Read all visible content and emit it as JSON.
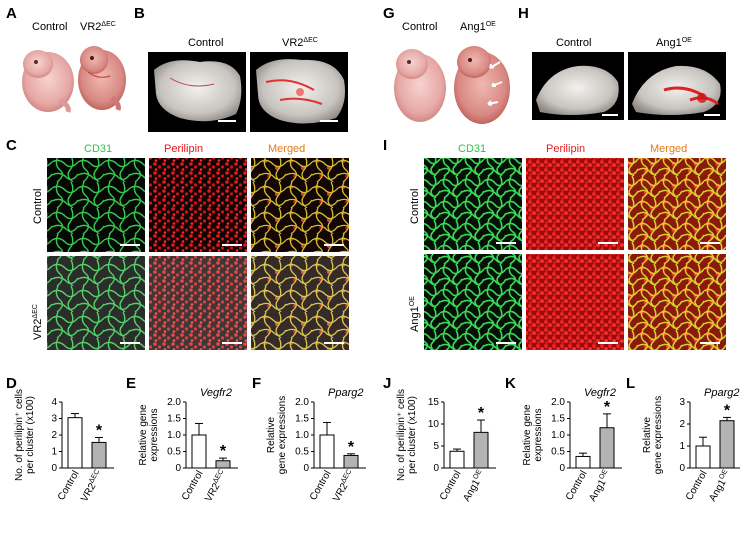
{
  "panel_letters": [
    "A",
    "B",
    "C",
    "D",
    "E",
    "F",
    "G",
    "H",
    "I",
    "J",
    "K",
    "L"
  ],
  "A": {
    "labels": [
      "Control",
      "VR2"
    ],
    "sup": [
      "",
      "ΔEC"
    ]
  },
  "B": {
    "labels": [
      "Control",
      "VR2"
    ],
    "sup": [
      "",
      "ΔEC"
    ]
  },
  "G": {
    "labels": [
      "Control",
      "Ang1"
    ],
    "sup": [
      "",
      "OE"
    ]
  },
  "H": {
    "labels": [
      "Control",
      "Ang1"
    ],
    "sup": [
      "",
      "OE"
    ]
  },
  "C": {
    "columns": [
      "CD31",
      "Perilipin",
      "Merged"
    ],
    "rows": [
      "Control",
      "VR2"
    ],
    "row_sup": [
      "",
      "ΔEC"
    ]
  },
  "I": {
    "columns": [
      "CD31",
      "Perilipin",
      "Merged"
    ],
    "rows": [
      "Control",
      "Ang1"
    ],
    "row_sup": [
      "",
      "OE"
    ]
  },
  "colors": {
    "green": "#31c14a",
    "red": "#e11b1b",
    "orange": "#e07a1b",
    "bar_open": "#ffffff",
    "bar_filled": "#b3b3b3"
  },
  "chart_data": [
    {
      "panel": "D",
      "type": "bar",
      "title": "",
      "ylabel_lines": [
        "No. of perilipin⁺ cells",
        "per cluster (x100)"
      ],
      "categories": [
        "Control",
        "VR2"
      ],
      "category_sup": [
        "",
        "ΔEC"
      ],
      "values": [
        3.05,
        1.55
      ],
      "errors": [
        0.25,
        0.3
      ],
      "ylim": [
        0,
        4
      ],
      "yticks": [
        "0",
        "1",
        "2",
        "3",
        "4"
      ],
      "significance": [
        false,
        true
      ]
    },
    {
      "panel": "E",
      "type": "bar",
      "title": "Vegfr2",
      "ylabel_lines": [
        "Relative gene",
        "expressions"
      ],
      "categories": [
        "Control",
        "VR2"
      ],
      "category_sup": [
        "",
        "ΔEC"
      ],
      "values": [
        1.0,
        0.22
      ],
      "errors": [
        0.35,
        0.08
      ],
      "ylim": [
        0,
        2
      ],
      "yticks": [
        "0",
        "0.5",
        "1.0",
        "1.5",
        "2.0"
      ],
      "significance": [
        false,
        true
      ]
    },
    {
      "panel": "F",
      "type": "bar",
      "title": "Pparg2",
      "ylabel_lines": [
        "Relative",
        "gene expressions"
      ],
      "categories": [
        "Control",
        "VR2"
      ],
      "category_sup": [
        "",
        "ΔEC"
      ],
      "values": [
        1.0,
        0.38
      ],
      "errors": [
        0.38,
        0.05
      ],
      "ylim": [
        0,
        2
      ],
      "yticks": [
        "0",
        "0.5",
        "1.0",
        "1.5",
        "2.0"
      ],
      "significance": [
        false,
        true
      ]
    },
    {
      "panel": "J",
      "type": "bar",
      "title": "",
      "ylabel_lines": [
        "No. of perilipin⁺ cells",
        "per cluster (x100)"
      ],
      "categories": [
        "Control",
        "Ang1"
      ],
      "category_sup": [
        "",
        "OE"
      ],
      "values": [
        3.8,
        8.1
      ],
      "errors": [
        0.5,
        2.8
      ],
      "ylim": [
        0,
        15
      ],
      "yticks": [
        "0",
        "5",
        "10",
        "15"
      ],
      "significance": [
        false,
        true
      ]
    },
    {
      "panel": "K",
      "type": "bar",
      "title": "Vegfr2",
      "ylabel_lines": [
        "Relative gene",
        "expressions"
      ],
      "categories": [
        "Control",
        "Ang1"
      ],
      "category_sup": [
        "",
        "OE"
      ],
      "values": [
        0.35,
        1.22
      ],
      "errors": [
        0.1,
        0.42
      ],
      "ylim": [
        0,
        2
      ],
      "yticks": [
        "0",
        "0.5",
        "1.0",
        "1.5",
        "2.0"
      ],
      "significance": [
        false,
        true
      ]
    },
    {
      "panel": "L",
      "type": "bar",
      "title": "Pparg2",
      "ylabel_lines": [
        "Relative",
        "gene expressions"
      ],
      "categories": [
        "Control",
        "Ang1"
      ],
      "category_sup": [
        "",
        "OE"
      ],
      "values": [
        1.0,
        2.15
      ],
      "errors": [
        0.4,
        0.15
      ],
      "ylim": [
        0,
        3
      ],
      "yticks": [
        "0",
        "1",
        "2",
        "3"
      ],
      "significance": [
        false,
        true
      ]
    }
  ]
}
